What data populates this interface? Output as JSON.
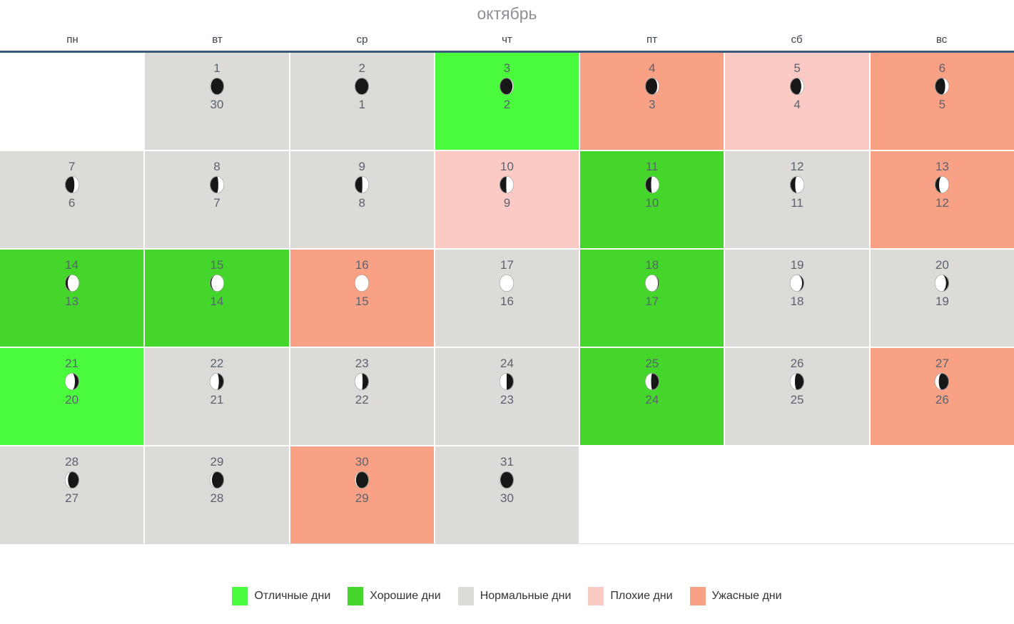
{
  "title": "октябрь",
  "weekdays": [
    "пн",
    "вт",
    "ср",
    "чт",
    "пт",
    "сб",
    "вс"
  ],
  "colors": {
    "excellent": "#4afb3d",
    "good": "#44d62b",
    "normal": "#dcdbd8",
    "bad": "#fbcac5",
    "terrible": "#f9a185",
    "header_line": "#375a7f",
    "bottom_line": "#dddddd",
    "title_text": "#8b9096",
    "weekday_text": "#3b434d",
    "date_text": "#5a6270",
    "legend_text": "#333333",
    "moon_dark": "#171717",
    "moon_light": "#ffffff",
    "moon_border": "#909090"
  },
  "weeks": [
    [
      null,
      {
        "date": 1,
        "lunar": 30,
        "rating": "normal",
        "moon": {
          "icon": "moon-phase-icon",
          "side": "left",
          "lit": 0.05
        }
      },
      {
        "date": 2,
        "lunar": 1,
        "rating": "normal",
        "moon": {
          "icon": "moon-phase-icon",
          "side": "right",
          "lit": 0.0
        }
      },
      {
        "date": 3,
        "lunar": 2,
        "rating": "excellent",
        "moon": {
          "icon": "moon-phase-icon",
          "side": "right",
          "lit": 0.07
        }
      },
      {
        "date": 4,
        "lunar": 3,
        "rating": "terrible",
        "moon": {
          "icon": "moon-phase-icon",
          "side": "right",
          "lit": 0.13
        }
      },
      {
        "date": 5,
        "lunar": 4,
        "rating": "bad",
        "moon": {
          "icon": "moon-phase-icon",
          "side": "right",
          "lit": 0.19
        }
      },
      {
        "date": 6,
        "lunar": 5,
        "rating": "terrible",
        "moon": {
          "icon": "moon-phase-icon",
          "side": "right",
          "lit": 0.26
        }
      }
    ],
    [
      {
        "date": 7,
        "lunar": 6,
        "rating": "normal",
        "moon": {
          "icon": "moon-phase-icon",
          "side": "right",
          "lit": 0.33
        }
      },
      {
        "date": 8,
        "lunar": 7,
        "rating": "normal",
        "moon": {
          "icon": "moon-phase-icon",
          "side": "right",
          "lit": 0.4
        }
      },
      {
        "date": 9,
        "lunar": 8,
        "rating": "normal",
        "moon": {
          "icon": "moon-phase-icon",
          "side": "right",
          "lit": 0.46
        }
      },
      {
        "date": 10,
        "lunar": 9,
        "rating": "bad",
        "moon": {
          "icon": "moon-phase-icon",
          "side": "right",
          "lit": 0.53
        }
      },
      {
        "date": 11,
        "lunar": 10,
        "rating": "good",
        "moon": {
          "icon": "moon-phase-icon",
          "side": "right",
          "lit": 0.58
        }
      },
      {
        "date": 12,
        "lunar": 11,
        "rating": "normal",
        "moon": {
          "icon": "moon-phase-icon",
          "side": "right",
          "lit": 0.64
        }
      },
      {
        "date": 13,
        "lunar": 12,
        "rating": "terrible",
        "moon": {
          "icon": "moon-phase-icon",
          "side": "right",
          "lit": 0.71
        }
      }
    ],
    [
      {
        "date": 14,
        "lunar": 13,
        "rating": "good",
        "moon": {
          "icon": "moon-phase-icon",
          "side": "right",
          "lit": 0.82
        }
      },
      {
        "date": 15,
        "lunar": 14,
        "rating": "good",
        "moon": {
          "icon": "moon-phase-icon",
          "side": "right",
          "lit": 0.91
        }
      },
      {
        "date": 16,
        "lunar": 15,
        "rating": "terrible",
        "moon": {
          "icon": "moon-phase-icon",
          "side": "right",
          "lit": 1.0
        }
      },
      {
        "date": 17,
        "lunar": 16,
        "rating": "normal",
        "moon": {
          "icon": "moon-phase-icon",
          "side": "left",
          "lit": 1.0
        }
      },
      {
        "date": 18,
        "lunar": 17,
        "rating": "good",
        "moon": {
          "icon": "moon-phase-icon",
          "side": "left",
          "lit": 0.93
        }
      },
      {
        "date": 19,
        "lunar": 18,
        "rating": "normal",
        "moon": {
          "icon": "moon-phase-icon",
          "side": "left",
          "lit": 0.87
        }
      },
      {
        "date": 20,
        "lunar": 19,
        "rating": "normal",
        "moon": {
          "icon": "moon-phase-icon",
          "side": "left",
          "lit": 0.8
        }
      }
    ],
    [
      {
        "date": 21,
        "lunar": 20,
        "rating": "excellent",
        "moon": {
          "icon": "moon-phase-icon",
          "side": "left",
          "lit": 0.71
        }
      },
      {
        "date": 22,
        "lunar": 21,
        "rating": "normal",
        "moon": {
          "icon": "moon-phase-icon",
          "side": "left",
          "lit": 0.64
        }
      },
      {
        "date": 23,
        "lunar": 22,
        "rating": "normal",
        "moon": {
          "icon": "moon-phase-icon",
          "side": "left",
          "lit": 0.56
        }
      },
      {
        "date": 24,
        "lunar": 23,
        "rating": "normal",
        "moon": {
          "icon": "moon-phase-icon",
          "side": "left",
          "lit": 0.5
        }
      },
      {
        "date": 25,
        "lunar": 24,
        "rating": "good",
        "moon": {
          "icon": "moon-phase-icon",
          "side": "left",
          "lit": 0.42
        }
      },
      {
        "date": 26,
        "lunar": 25,
        "rating": "normal",
        "moon": {
          "icon": "moon-phase-icon",
          "side": "left",
          "lit": 0.34
        }
      },
      {
        "date": 27,
        "lunar": 26,
        "rating": "terrible",
        "moon": {
          "icon": "moon-phase-icon",
          "side": "left",
          "lit": 0.27
        }
      }
    ],
    [
      {
        "date": 28,
        "lunar": 27,
        "rating": "normal",
        "moon": {
          "icon": "moon-phase-icon",
          "side": "left",
          "lit": 0.2
        }
      },
      {
        "date": 29,
        "lunar": 28,
        "rating": "normal",
        "moon": {
          "icon": "moon-phase-icon",
          "side": "left",
          "lit": 0.13
        }
      },
      {
        "date": 30,
        "lunar": 29,
        "rating": "terrible",
        "moon": {
          "icon": "moon-phase-icon",
          "side": "left",
          "lit": 0.07
        }
      },
      {
        "date": 31,
        "lunar": 30,
        "rating": "normal",
        "moon": {
          "icon": "moon-phase-icon",
          "side": "left",
          "lit": 0.04
        }
      },
      null,
      null,
      null
    ]
  ],
  "legend": [
    {
      "label": "Отличные дни",
      "rating": "excellent"
    },
    {
      "label": "Хорошие дни",
      "rating": "good"
    },
    {
      "label": "Нормальные дни",
      "rating": "normal"
    },
    {
      "label": "Плохие дни",
      "rating": "bad"
    },
    {
      "label": "Ужасные дни",
      "rating": "terrible"
    }
  ]
}
